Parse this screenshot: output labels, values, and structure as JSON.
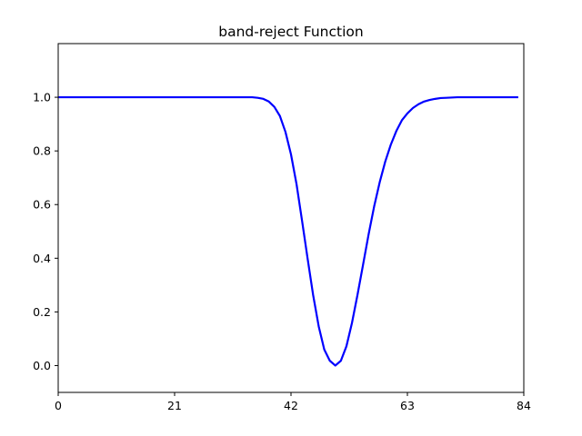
{
  "chart_data": {
    "type": "line",
    "title": "band-reject Function",
    "xlabel": "",
    "ylabel": "",
    "xlim": [
      0,
      84
    ],
    "ylim": [
      -0.1,
      1.2
    ],
    "xticks": [
      0,
      21,
      42,
      63,
      84
    ],
    "xtick_labels": [
      "0",
      "21",
      "42",
      "63",
      "84"
    ],
    "yticks": [
      0.0,
      0.2,
      0.4,
      0.6,
      0.8,
      1.0
    ],
    "ytick_labels": [
      "0.0",
      "0.2",
      "0.4",
      "0.6",
      "0.8",
      "1.0"
    ],
    "grid": false,
    "legend": "none",
    "series": [
      {
        "color": "#0000ff",
        "x": [
          0,
          10,
          20,
          30,
          35,
          36,
          37,
          38,
          39,
          40,
          41,
          42,
          43,
          44,
          45,
          46,
          47,
          48,
          49,
          50,
          51,
          52,
          53,
          54,
          55,
          56,
          57,
          58,
          59,
          60,
          61,
          62,
          63,
          64,
          65,
          66,
          67,
          68,
          69,
          70,
          72,
          75,
          78,
          83
        ],
        "y": [
          1.0,
          1.0,
          1.0,
          1.0,
          1.0,
          0.998,
          0.994,
          0.984,
          0.964,
          0.93,
          0.871,
          0.787,
          0.676,
          0.539,
          0.398,
          0.262,
          0.146,
          0.06,
          0.018,
          0.0,
          0.018,
          0.072,
          0.159,
          0.264,
          0.376,
          0.489,
          0.593,
          0.683,
          0.76,
          0.823,
          0.874,
          0.914,
          0.94,
          0.96,
          0.974,
          0.984,
          0.99,
          0.994,
          0.997,
          0.998,
          1.0,
          1.0,
          1.0,
          1.0
        ]
      }
    ]
  }
}
